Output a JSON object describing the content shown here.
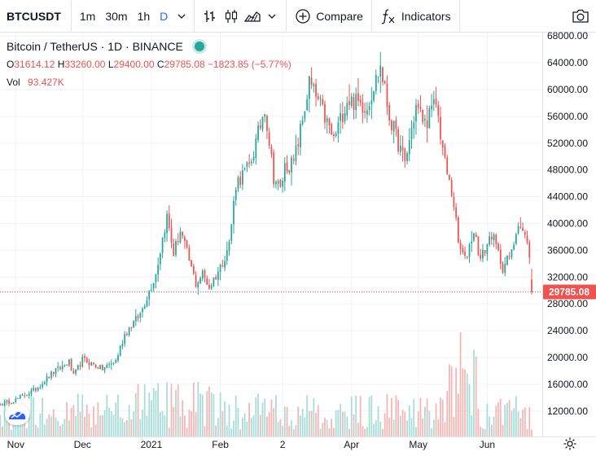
{
  "toolbar": {
    "symbol": "BTCUSDT",
    "intervals": [
      "1m",
      "30m",
      "1h",
      "D"
    ],
    "active_interval": "D",
    "compare_label": "Compare",
    "indicators_label": "Indicators",
    "icons": [
      "chevron-down-icon",
      "bar-style-icon",
      "candle-style-icon",
      "area-style-icon",
      "plus-circle-icon",
      "fx-icon",
      "camera-icon"
    ]
  },
  "legend": {
    "title": "Bitcoin / TetherUS · 1D · BINANCE",
    "o_label": "O",
    "o_value": "31614.12",
    "h_label": "H",
    "h_value": "33260.00",
    "l_label": "L",
    "l_value": "29400.00",
    "c_label": "C",
    "c_value": "29785.08",
    "change": "−1823.85 (−5.77%)",
    "vol_label": "Vol",
    "vol_value": "93.427K"
  },
  "colors": {
    "up": "#26a69a",
    "down": "#ef5350",
    "up_vol": "#a8dcd6",
    "down_vol": "#f5b5b3",
    "grid": "#f0f3fa",
    "text": "#131722",
    "axis_text": "#131722"
  },
  "chart_data": {
    "type": "candlestick",
    "x_range": [
      "2020-10-25",
      "2021-06-21"
    ],
    "x_ticks": [
      "Nov",
      "Dec",
      "2021",
      "Feb",
      "2",
      "Apr",
      "May",
      "Jun"
    ],
    "y_ticks": [
      "68000.00",
      "64000.00",
      "60000.00",
      "56000.00",
      "52000.00",
      "48000.00",
      "44000.00",
      "40000.00",
      "36000.00",
      "32000.00",
      "28000.00",
      "24000.00",
      "20000.00",
      "16000.00",
      "12000.00"
    ],
    "ylim": [
      10000,
      69000
    ],
    "last_price": "29785.08",
    "close_anchors": [
      [
        "2020-10-25",
        13000
      ],
      [
        "2020-11-01",
        13700
      ],
      [
        "2020-11-10",
        15300
      ],
      [
        "2020-11-18",
        17800
      ],
      [
        "2020-11-25",
        19300
      ],
      [
        "2020-11-27",
        17200
      ],
      [
        "2020-12-01",
        19700
      ],
      [
        "2020-12-10",
        18300
      ],
      [
        "2020-12-16",
        19500
      ],
      [
        "2020-12-20",
        23500
      ],
      [
        "2020-12-27",
        26500
      ],
      [
        "2021-01-03",
        32500
      ],
      [
        "2021-01-07",
        39500
      ],
      [
        "2021-01-08",
        41000
      ],
      [
        "2021-01-11",
        35500
      ],
      [
        "2021-01-14",
        39000
      ],
      [
        "2021-01-21",
        31000
      ],
      [
        "2021-01-24",
        32500
      ],
      [
        "2021-01-27",
        30500
      ],
      [
        "2021-02-01",
        33500
      ],
      [
        "2021-02-05",
        37000
      ],
      [
        "2021-02-08",
        46000
      ],
      [
        "2021-02-14",
        48500
      ],
      [
        "2021-02-17",
        52000
      ],
      [
        "2021-02-21",
        57500
      ],
      [
        "2021-02-25",
        47000
      ],
      [
        "2021-02-28",
        45000
      ],
      [
        "2021-03-02",
        48500
      ],
      [
        "2021-03-06",
        49000
      ],
      [
        "2021-03-10",
        55500
      ],
      [
        "2021-03-13",
        61000
      ],
      [
        "2021-03-18",
        57500
      ],
      [
        "2021-03-24",
        52500
      ],
      [
        "2021-03-30",
        58500
      ],
      [
        "2021-04-04",
        58000
      ],
      [
        "2021-04-08",
        57500
      ],
      [
        "2021-04-14",
        63500
      ],
      [
        "2021-04-18",
        56000
      ],
      [
        "2021-04-25",
        49000
      ],
      [
        "2021-04-30",
        57500
      ],
      [
        "2021-05-04",
        55000
      ],
      [
        "2021-05-09",
        58000
      ],
      [
        "2021-05-13",
        49000
      ],
      [
        "2021-05-17",
        43000
      ],
      [
        "2021-05-19",
        37000
      ],
      [
        "2021-05-22",
        34500
      ],
      [
        "2021-05-26",
        39000
      ],
      [
        "2021-05-29",
        34600
      ],
      [
        "2021-06-03",
        38500
      ],
      [
        "2021-06-08",
        33500
      ],
      [
        "2021-06-12",
        35500
      ],
      [
        "2021-06-15",
        40500
      ],
      [
        "2021-06-18",
        38000
      ],
      [
        "2021-06-20",
        35500
      ],
      [
        "2021-06-21",
        29785
      ]
    ]
  }
}
